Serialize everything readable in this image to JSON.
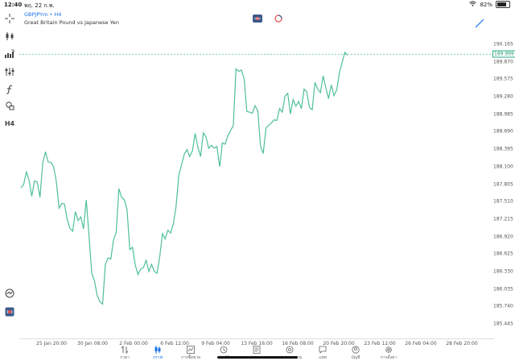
{
  "status_bar": {
    "time": "12:40",
    "date": "พฤ. 22 ก.พ.",
    "battery": "82%",
    "battery_level": 0.82
  },
  "header": {
    "symbol": "GBPJPYm • H4",
    "description": "Great Britain Pound vs Japanese Yen"
  },
  "toolbar": {
    "timeframe": "H4"
  },
  "price_axis": {
    "labels": [
      "190.165",
      "189.870",
      "189.575",
      "189.280",
      "188.985",
      "188.690",
      "188.395",
      "188.100",
      "187.805",
      "187.510",
      "187.215",
      "186.920",
      "186.625",
      "186.330",
      "186.035",
      "185.740",
      "185.445"
    ],
    "current_price": "189.999"
  },
  "time_axis": {
    "labels": [
      "25 Jan 20:00",
      "30 Jan 08:00",
      "2 Feb 00:00",
      "6 Feb 12:00",
      "9 Feb 04:00",
      "13 Feb 16:00",
      "16 Feb 08:00",
      "20 Feb 20:00",
      "23 Feb 12:00",
      "26 Feb 04:00",
      "28 Feb 20:00"
    ]
  },
  "colors": {
    "line": "#4fbf98",
    "accent": "#1a73e8",
    "current_price_line": "#2aa98a"
  },
  "chart_data": {
    "type": "line",
    "series": [
      {
        "values": [
          187.74,
          187.8,
          188.01,
          187.87,
          187.6,
          187.86,
          187.84,
          187.58,
          188.16,
          188.35,
          188.18,
          188.17,
          188.1,
          187.85,
          187.4,
          187.48,
          187.47,
          187.21,
          187.06,
          187.01,
          187.34,
          187.19,
          187.25,
          187.05,
          187.54,
          186.94,
          186.3,
          186.18,
          185.93,
          185.82,
          185.78,
          186.45,
          186.56,
          186.54,
          186.86,
          186.99,
          187.73,
          187.58,
          187.54,
          187.37,
          186.7,
          186.74,
          186.44,
          186.28,
          186.37,
          186.4,
          186.52,
          186.33,
          186.45,
          186.33,
          186.3,
          186.59,
          186.97,
          186.88,
          187.03,
          186.98,
          187.14,
          187.43,
          187.95,
          188.13,
          188.31,
          188.39,
          188.27,
          188.37,
          188.66,
          188.43,
          188.27,
          188.67,
          188.6,
          188.41,
          188.46,
          188.41,
          188.44,
          188.1,
          188.5,
          188.48,
          188.62,
          188.71,
          188.79,
          189.75,
          189.71,
          189.73,
          189.58,
          189.03,
          189.02,
          189.0,
          189.13,
          189.04,
          188.45,
          188.32,
          188.75,
          188.8,
          188.84,
          188.89,
          188.88,
          189.08,
          189.02,
          189.29,
          189.34,
          188.99,
          189.23,
          189.12,
          189.2,
          189.08,
          189.41,
          189.36,
          189.1,
          189.06,
          189.52,
          189.41,
          189.35,
          189.63,
          189.43,
          189.25,
          189.48,
          189.3,
          189.4,
          189.69,
          189.86,
          190.03,
          189.98
        ]
      }
    ],
    "ylim": [
      185.445,
      190.165
    ],
    "current_price": 189.999,
    "grid": false
  }
}
